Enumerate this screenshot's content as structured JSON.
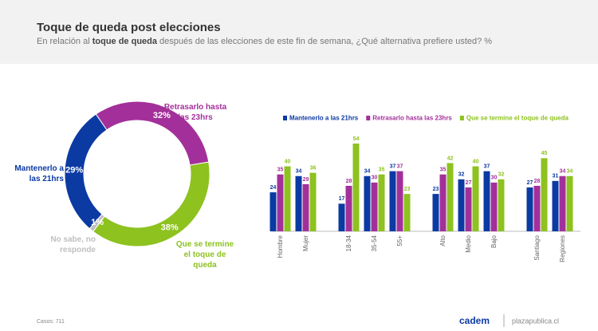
{
  "header": {
    "title": "Toque de queda post elecciones",
    "subtitle_before": "En relación al ",
    "subtitle_bold": "toque de queda",
    "subtitle_after": " después de las elecciones de este fin de semana, ¿Qué alternativa prefiere usted? %"
  },
  "chart_data": [
    {
      "type": "donut",
      "categories": [
        "Mantenerlo a las 21hrs",
        "Retrasarlo hasta las 23hrs",
        "Que se termine el toque de queda",
        "No sabe, no responde"
      ],
      "values": [
        29,
        32,
        38,
        1
      ],
      "value_labels": [
        "29%",
        "32%",
        "38%",
        "1%"
      ],
      "colors": [
        "#0b3aa3",
        "#a3309a",
        "#8dc21f",
        "#bfbfbf"
      ]
    },
    {
      "type": "bar",
      "categories": [
        "Hombre",
        "Mujer",
        "18-34",
        "35-54",
        "55+",
        "Alto",
        "Medio",
        "Bajo",
        "Santiago",
        "Regiones"
      ],
      "legend": "top",
      "series": [
        {
          "name": "Mantenerlo a las 21hrs",
          "color": "#0b3aa3",
          "values": [
            24,
            34,
            17,
            34,
            37,
            23,
            32,
            37,
            27,
            31
          ]
        },
        {
          "name": "Retrasarlo hasta las 23hrs",
          "color": "#a3309a",
          "values": [
            35,
            29,
            28,
            30,
            37,
            35,
            27,
            30,
            28,
            34
          ]
        },
        {
          "name": "Que se termine el toque de queda",
          "color": "#8dc21f",
          "values": [
            40,
            36,
            54,
            35,
            23,
            42,
            40,
            32,
            45,
            34
          ]
        }
      ]
    }
  ],
  "footer": {
    "cases": "Casos: 711",
    "brand": "cadem",
    "site": "plazapublica.cl"
  }
}
